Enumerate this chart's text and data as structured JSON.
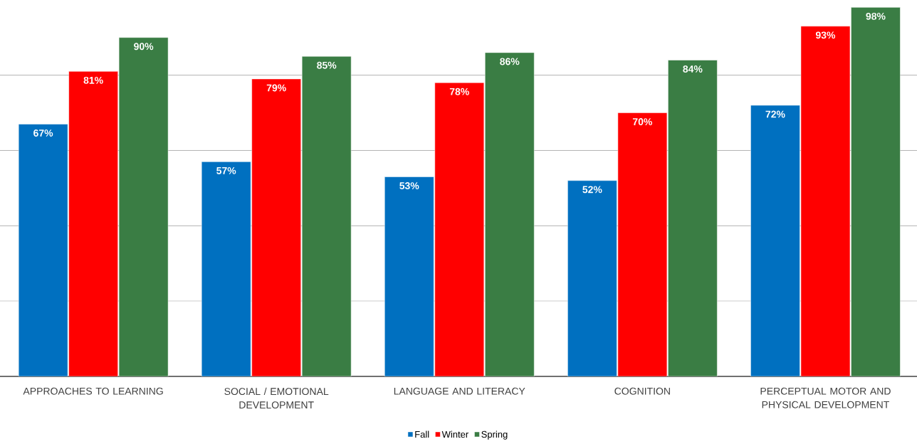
{
  "chart_data": {
    "type": "bar",
    "categories": [
      "APPROACHES TO LEARNING",
      "SOCIAL / EMOTIONAL DEVELOPMENT",
      "LANGUAGE AND LITERACY",
      "COGNITION",
      "PERCEPTUAL MOTOR AND PHYSICAL DEVELOPMENT"
    ],
    "series": [
      {
        "name": "Fall",
        "color": "#0070c0",
        "values": [
          67,
          57,
          53,
          52,
          72
        ],
        "value_labels": [
          "67%",
          "57%",
          "53%",
          "52%",
          "72%"
        ]
      },
      {
        "name": "Winter",
        "color": "#ff0000",
        "values": [
          81,
          79,
          78,
          70,
          93
        ],
        "value_labels": [
          "81%",
          "79%",
          "78%",
          "70%",
          "93%"
        ]
      },
      {
        "name": "Spring",
        "color": "#3a7d44",
        "values": [
          90,
          85,
          86,
          84,
          98
        ],
        "value_labels": [
          "90%",
          "85%",
          "86%",
          "84%",
          "98%"
        ]
      }
    ],
    "yticks": [
      {
        "value": 20,
        "label": null
      },
      {
        "value": 40,
        "label": null
      },
      {
        "value": 60,
        "label": null
      },
      {
        "value": 80,
        "label": null
      }
    ],
    "grid": "y",
    "tick_labels": "x",
    "legend": "bottom"
  }
}
